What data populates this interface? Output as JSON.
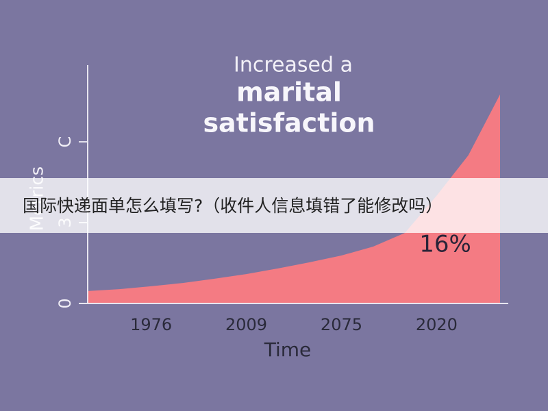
{
  "chart_data": {
    "type": "area",
    "title_lines": [
      "Increased a",
      "marital",
      "satisfaction"
    ],
    "xlabel": "Time",
    "ylabel": "Metrics",
    "categories": [
      null,
      null,
      "1976",
      null,
      null,
      "2009",
      null,
      null,
      "2075",
      null,
      null,
      "2020",
      null,
      null
    ],
    "values": [
      0.46,
      0.53,
      0.64,
      0.76,
      0.92,
      1.09,
      1.3,
      1.53,
      1.78,
      2.11,
      2.62,
      4.0,
      5.5,
      7.76
    ],
    "color": "#f47b83",
    "ylim": [
      0,
      8.85
    ],
    "yticks": [
      0,
      3,
      {
        "value": 6,
        "label": "C"
      }
    ],
    "annotation": "16%"
  },
  "banner": "国际快递面单怎么填写?（收件人信息填错了能修改吗）"
}
